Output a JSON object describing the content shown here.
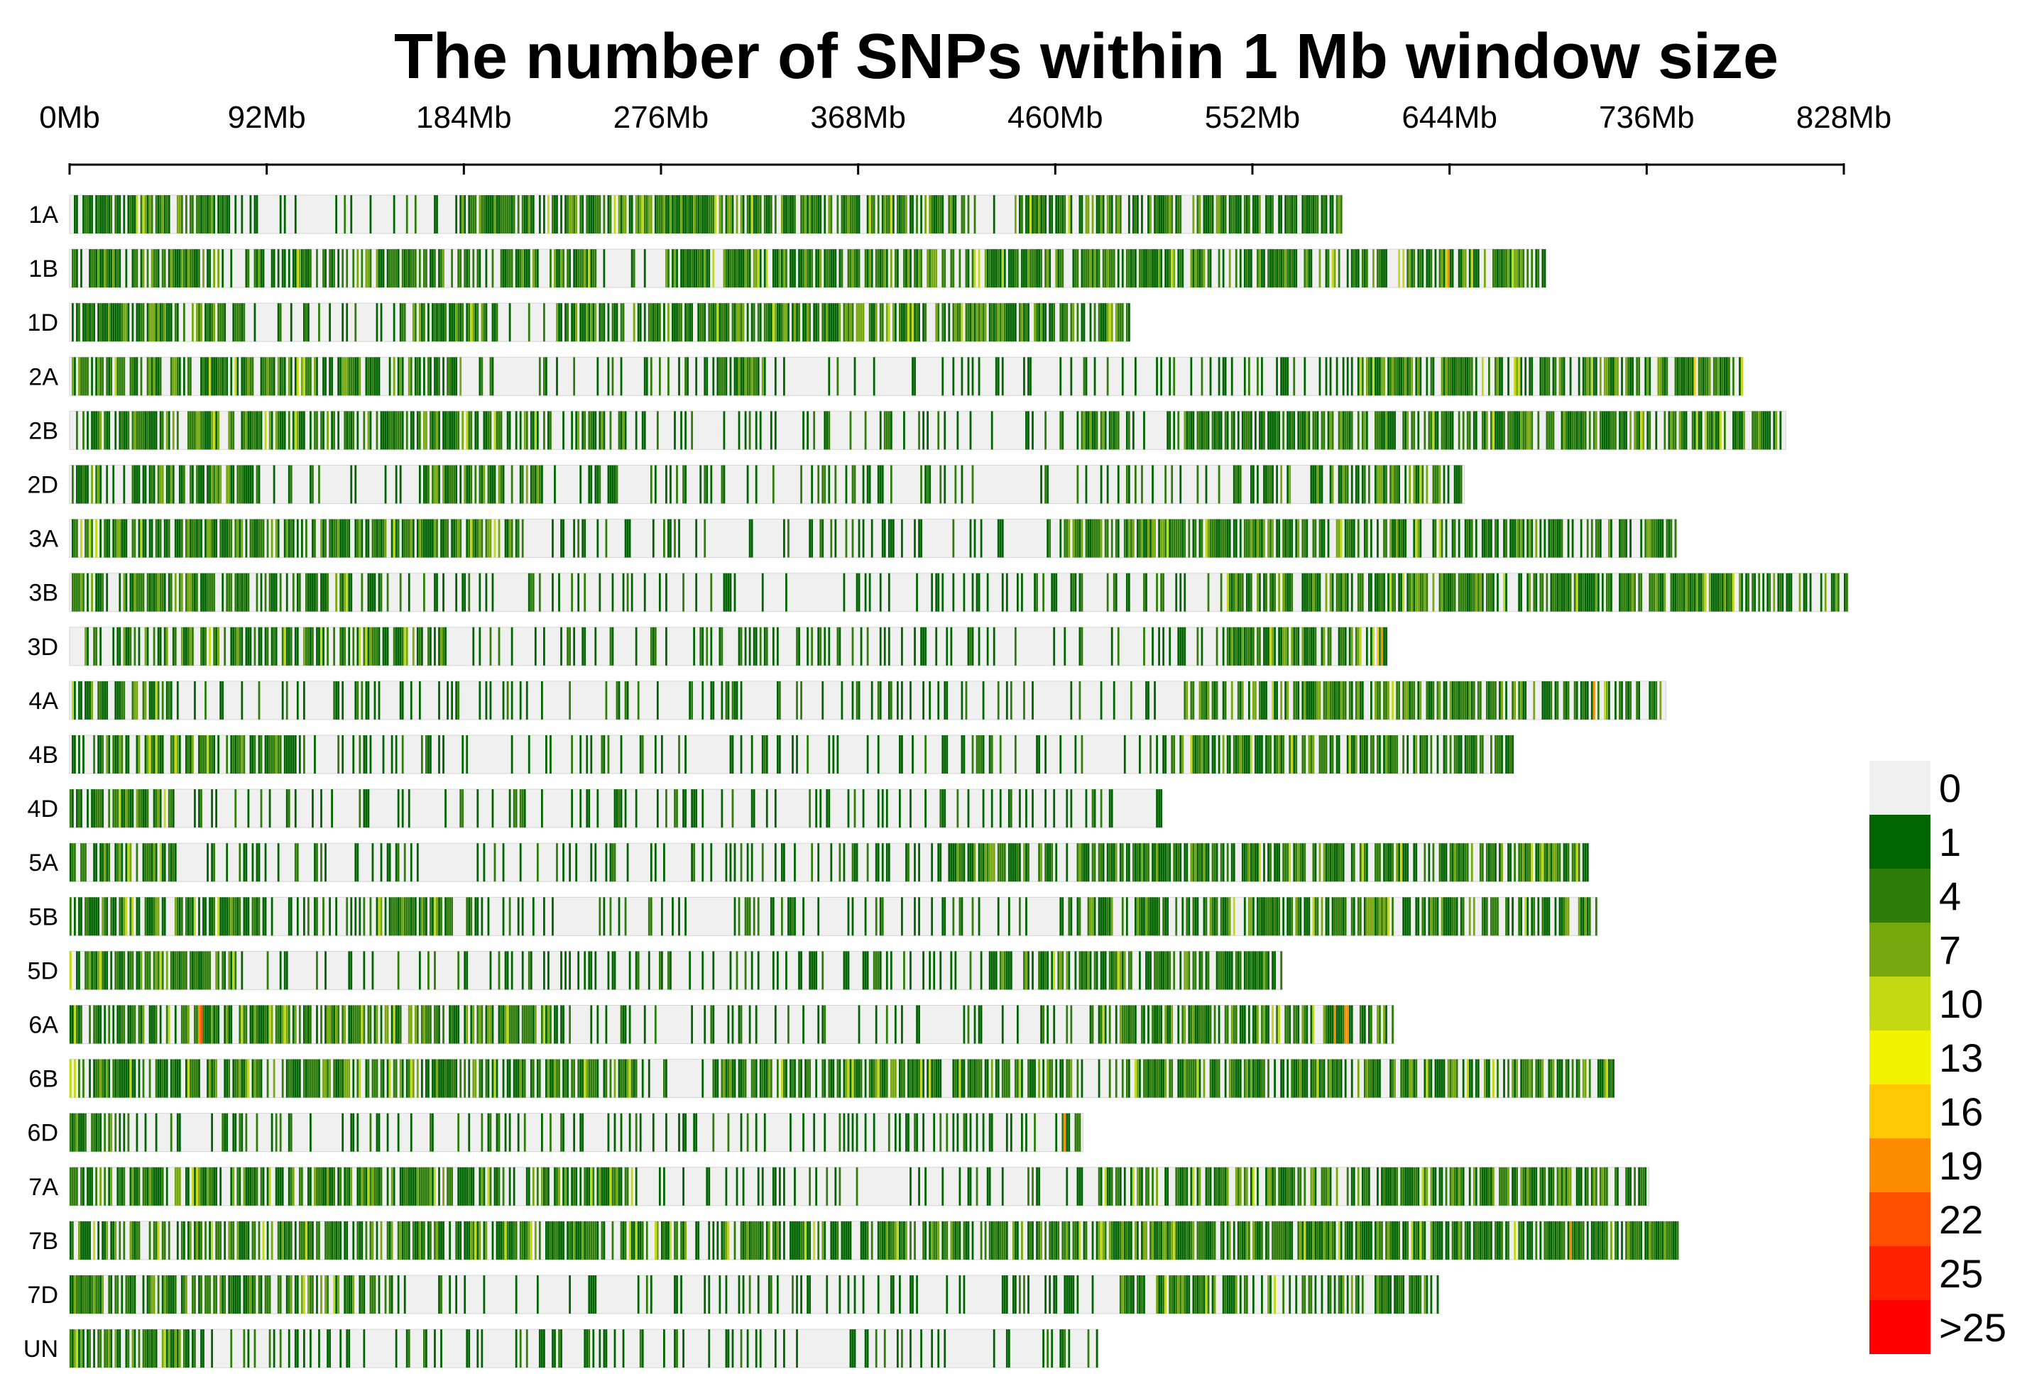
{
  "chart_data": {
    "type": "heatmap",
    "title": "The number of SNPs within 1 Mb window size",
    "xlabel": "",
    "ylabel": "",
    "x_unit": "Mb",
    "xlim": [
      0,
      828
    ],
    "x_ticks": [
      {
        "value": 0,
        "label": "0Mb"
      },
      {
        "value": 92,
        "label": "92Mb"
      },
      {
        "value": 184,
        "label": "184Mb"
      },
      {
        "value": 276,
        "label": "276Mb"
      },
      {
        "value": 368,
        "label": "368Mb"
      },
      {
        "value": 460,
        "label": "460Mb"
      },
      {
        "value": 552,
        "label": "552Mb"
      },
      {
        "value": 644,
        "label": "644Mb"
      },
      {
        "value": 736,
        "label": "736Mb"
      },
      {
        "value": 828,
        "label": "828Mb"
      }
    ],
    "window_size_mb": 1,
    "chromosomes": [
      {
        "name": "1A",
        "length": 594,
        "seed": 11,
        "sparse": [
          [
            75,
            180
          ],
          [
            420,
            440
          ]
        ],
        "hot": []
      },
      {
        "name": "1B",
        "length": 689,
        "seed": 23,
        "sparse": [
          [
            70,
            86
          ],
          [
            246,
            277
          ]
        ],
        "hot": [
          [
            643,
            21
          ]
        ]
      },
      {
        "name": "1D",
        "length": 495,
        "seed": 37,
        "sparse": [
          [
            82,
            160
          ],
          [
            200,
            225
          ]
        ],
        "hot": []
      },
      {
        "name": "2A",
        "length": 781,
        "seed": 41,
        "sparse": [
          [
            185,
            300
          ],
          [
            330,
            600
          ]
        ],
        "hot": [
          [
            758,
            17
          ]
        ]
      },
      {
        "name": "2B",
        "length": 801,
        "seed": 53,
        "sparse": [
          [
            260,
            470
          ],
          [
            490,
            520
          ]
        ],
        "hot": []
      },
      {
        "name": "2D",
        "length": 651,
        "seed": 67,
        "sparse": [
          [
            90,
            165
          ],
          [
            220,
            550
          ]
        ],
        "hot": []
      },
      {
        "name": "3A",
        "length": 750,
        "seed": 71,
        "sparse": [
          [
            210,
            465
          ]
        ],
        "hot": []
      },
      {
        "name": "3B",
        "length": 830,
        "seed": 83,
        "sparse": [
          [
            150,
            540
          ]
        ],
        "hot": []
      },
      {
        "name": "3D",
        "length": 615,
        "seed": 97,
        "sparse": [
          [
            175,
            540
          ]
        ],
        "hot": [
          [
            610,
            18
          ],
          [
            612,
            19
          ]
        ]
      },
      {
        "name": "4A",
        "length": 745,
        "seed": 101,
        "sparse": [
          [
            47,
            520
          ]
        ],
        "hot": [
          [
            711,
            19
          ]
        ]
      },
      {
        "name": "4B",
        "length": 674,
        "seed": 113,
        "sparse": [
          [
            110,
            510
          ]
        ],
        "hot": []
      },
      {
        "name": "4D",
        "length": 510,
        "seed": 127,
        "sparse": [
          [
            50,
            510
          ]
        ],
        "hot": []
      },
      {
        "name": "5A",
        "length": 709,
        "seed": 131,
        "sparse": [
          [
            50,
            410
          ]
        ],
        "hot": []
      },
      {
        "name": "5B",
        "length": 713,
        "seed": 149,
        "sparse": [
          [
            90,
            140
          ],
          [
            180,
            470
          ]
        ],
        "hot": []
      },
      {
        "name": "5D",
        "length": 566,
        "seed": 151,
        "sparse": [
          [
            80,
            430
          ]
        ],
        "hot": []
      },
      {
        "name": "6A",
        "length": 618,
        "seed": 163,
        "sparse": [
          [
            230,
            480
          ]
        ],
        "hot": [
          [
            60,
            20
          ],
          [
            61,
            22
          ],
          [
            590,
            19
          ],
          [
            595,
            20
          ],
          [
            596,
            21
          ]
        ]
      },
      {
        "name": "6B",
        "length": 721,
        "seed": 173,
        "sparse": [
          [
            265,
            300
          ],
          [
            470,
            490
          ]
        ],
        "hot": []
      },
      {
        "name": "6D",
        "length": 473,
        "seed": 181,
        "sparse": [
          [
            28,
            460
          ]
        ],
        "hot": [
          [
            464,
            20
          ]
        ]
      },
      {
        "name": "7A",
        "length": 737,
        "seed": 191,
        "sparse": [
          [
            265,
            480
          ]
        ],
        "hot": []
      },
      {
        "name": "7B",
        "length": 751,
        "seed": 197,
        "sparse": [
          [
            290,
            300
          ]
        ],
        "hot": [
          [
            700,
            21
          ]
        ]
      },
      {
        "name": "7D",
        "length": 639,
        "seed": 211,
        "sparse": [
          [
            145,
            490
          ]
        ],
        "hot": []
      },
      {
        "name": "UN",
        "length": 480,
        "seed": 223,
        "sparse": [
          [
            60,
            480
          ]
        ],
        "hot": []
      }
    ],
    "legend": {
      "title": "",
      "placement": "bottom-right",
      "bins": [
        {
          "label": "0",
          "color": "#f0f0f0"
        },
        {
          "label": "1",
          "color": "#006400"
        },
        {
          "label": "4",
          "color": "#2e7d0a"
        },
        {
          "label": "7",
          "color": "#76a80e"
        },
        {
          "label": "10",
          "color": "#c3d912"
        },
        {
          "label": "13",
          "color": "#f2f200"
        },
        {
          "label": "16",
          "color": "#ffc800"
        },
        {
          "label": "19",
          "color": "#ff8c00"
        },
        {
          "label": "22",
          "color": "#ff5000"
        },
        {
          "label": "25",
          "color": "#ff2200"
        },
        {
          "label": ">25",
          "color": "#ff0000"
        }
      ]
    }
  }
}
